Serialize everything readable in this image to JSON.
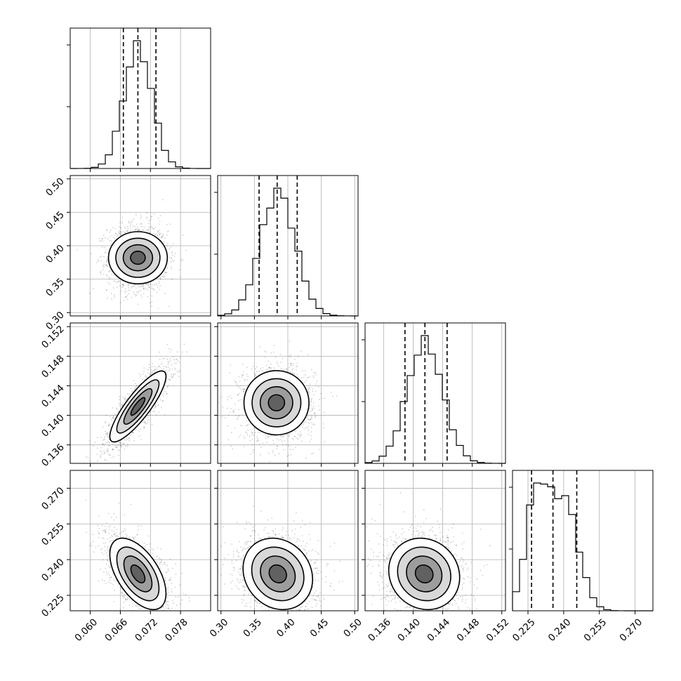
{
  "chart_data": {
    "type": "corner",
    "grid": true,
    "parameters": [
      {
        "index": 0,
        "range": [
          0.056,
          0.084
        ],
        "ticks": [
          "0.060",
          "0.066",
          "0.072",
          "0.078"
        ],
        "mean": 0.0695,
        "sd": 0.0028,
        "quantiles": [
          0.0666,
          0.0695,
          0.0731
        ]
      },
      {
        "index": 1,
        "range": [
          0.295,
          0.505
        ],
        "ticks": [
          "0.30",
          "0.35",
          "0.40",
          "0.45",
          "0.50"
        ],
        "mean": 0.385,
        "sd": 0.026,
        "quantiles": [
          0.357,
          0.384,
          0.414
        ]
      },
      {
        "index": 2,
        "range": [
          0.1335,
          0.1525
        ],
        "ticks": [
          "0.136",
          "0.140",
          "0.144",
          "0.148",
          "0.152"
        ],
        "mean": 0.1416,
        "sd": 0.0024,
        "quantiles": [
          0.1389,
          0.1416,
          0.1446
        ]
      },
      {
        "index": 3,
        "range": [
          0.2185,
          0.2775
        ],
        "ticks": [
          "0.225",
          "0.240",
          "0.255",
          "0.270"
        ],
        "mean": 0.2355,
        "sd": 0.0085,
        "quantiles": [
          0.2265,
          0.2355,
          0.2455
        ]
      }
    ],
    "panels": [
      {
        "row": 1,
        "col": 0,
        "center": [
          0.0695,
          0.382
        ],
        "sd": [
          0.0026,
          0.022
        ],
        "correlation": 0.0
      },
      {
        "row": 2,
        "col": 0,
        "center": [
          0.0695,
          0.1412
        ],
        "sd": [
          0.0028,
          0.0024
        ],
        "correlation": 0.85
      },
      {
        "row": 2,
        "col": 1,
        "center": [
          0.383,
          0.1417
        ],
        "sd": [
          0.024,
          0.0022
        ],
        "correlation": 0.0
      },
      {
        "row": 3,
        "col": 0,
        "center": [
          0.0695,
          0.234
        ],
        "sd": [
          0.0028,
          0.0075
        ],
        "correlation": -0.55
      },
      {
        "row": 3,
        "col": 1,
        "center": [
          0.385,
          0.234
        ],
        "sd": [
          0.026,
          0.0075
        ],
        "correlation": -0.15
      },
      {
        "row": 3,
        "col": 2,
        "center": [
          0.1415,
          0.234
        ],
        "sd": [
          0.0024,
          0.0075
        ],
        "correlation": -0.1
      }
    ],
    "histogram": {
      "bins": 20
    },
    "contour_levels_sigma": [
      0.5,
      1.0,
      1.5,
      2.0
    ]
  }
}
